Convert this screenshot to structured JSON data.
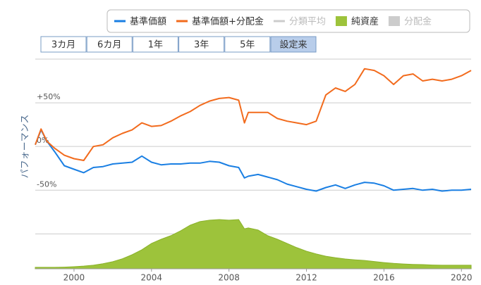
{
  "chart_data": {
    "type": "line",
    "y_axis_label": "パフォーマンス",
    "range_buttons": [
      "3カ月",
      "6カ月",
      "1年",
      "3年",
      "5年",
      "設定来"
    ],
    "selected_range": 5,
    "x": [
      1998.0,
      1998.3,
      1998.6,
      1999.0,
      1999.5,
      2000.0,
      2000.5,
      2001.0,
      2001.5,
      2002.0,
      2002.5,
      2003.0,
      2003.5,
      2004.0,
      2004.5,
      2005.0,
      2005.5,
      2006.0,
      2006.5,
      2007.0,
      2007.5,
      2008.0,
      2008.5,
      2008.8,
      2009.0,
      2009.5,
      2010.0,
      2010.5,
      2011.0,
      2011.5,
      2012.0,
      2012.5,
      2013.0,
      2013.5,
      2014.0,
      2014.5,
      2015.0,
      2015.5,
      2016.0,
      2016.5,
      2017.0,
      2017.5,
      2018.0,
      2018.5,
      2019.0,
      2019.5,
      2020.0,
      2020.5
    ],
    "xlim": [
      1998.0,
      2020.5
    ],
    "xticks": [
      2000,
      2004,
      2008,
      2012,
      2016,
      2020
    ],
    "ylim": [
      -140,
      100
    ],
    "yticks": [
      {
        "value": 50,
        "label": "+50%"
      },
      {
        "value": 0,
        "label": "0%"
      },
      {
        "value": -50,
        "label": "-50%"
      }
    ],
    "ygrid": [
      100,
      50,
      0,
      -50,
      -100
    ],
    "y2lim": [
      0,
      100
    ],
    "grid": true,
    "series": [
      {
        "name": "基準価額",
        "color": "#1a7fe3",
        "kind": "line",
        "values": [
          2,
          19,
          6,
          -6,
          -22,
          -26,
          -30,
          -24,
          -23,
          -20,
          -19,
          -18,
          -11,
          -18,
          -21,
          -20,
          -20,
          -19,
          -19,
          -17,
          -18,
          -22,
          -24,
          -36,
          -34,
          -32,
          -35,
          -38,
          -43,
          -46,
          -49,
          -51,
          -47,
          -44,
          -48,
          -44,
          -41,
          -42,
          -45,
          -50,
          -49,
          -48,
          -50,
          -49,
          -51,
          -50,
          -50,
          -49
        ]
      },
      {
        "name": "基準価額+分配金",
        "color": "#f26b1d",
        "kind": "line",
        "values": [
          2,
          20,
          6,
          -2,
          -10,
          -14,
          -16,
          0,
          2,
          10,
          15,
          19,
          27,
          23,
          24,
          29,
          35,
          40,
          47,
          52,
          55,
          56,
          53,
          27,
          39,
          39,
          39,
          32,
          29,
          27,
          25,
          29,
          59,
          67,
          63,
          71,
          89,
          87,
          81,
          71,
          81,
          83,
          75,
          77,
          75,
          77,
          81,
          87
        ]
      },
      {
        "name": "分類平均",
        "color": "#cccccc",
        "kind": "line",
        "visible": false
      },
      {
        "name": "純資産",
        "color": "#9dc33b",
        "kind": "area",
        "axis": "y2",
        "values": [
          0.7,
          0.7,
          0.7,
          0.7,
          0.8,
          1.0,
          1.3,
          1.7,
          2.4,
          3.4,
          4.8,
          6.7,
          9.1,
          12.1,
          14.1,
          15.8,
          18.1,
          20.8,
          22.5,
          23.2,
          23.5,
          23.2,
          23.5,
          19.1,
          19.5,
          18.5,
          15.8,
          14.1,
          12.1,
          10.1,
          8.4,
          7.1,
          6.0,
          5.3,
          4.7,
          4.3,
          4.0,
          3.5,
          3.0,
          2.6,
          2.3,
          2.1,
          2.0,
          1.8,
          1.7,
          1.7,
          1.7,
          1.7
        ]
      },
      {
        "name": "分配金",
        "color": "#cccccc",
        "kind": "box",
        "visible": false
      }
    ]
  }
}
